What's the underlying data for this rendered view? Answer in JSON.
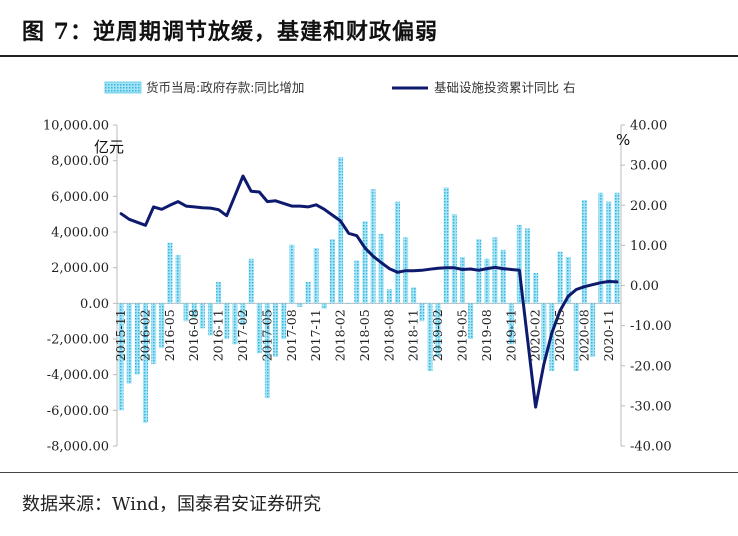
{
  "title": "图 7：逆周期调节放缓，基建和财政偏弱",
  "source": "数据来源：Wind，国泰君安证券研究",
  "colors": {
    "bar": "#5BC8E8",
    "line": "#0D1A6E"
  },
  "chart_data": {
    "type": "bar+line",
    "title": "",
    "ylabel_left": "亿元",
    "ylabel_right": "%",
    "ylim_left": [
      -8000,
      10000
    ],
    "ylim_right": [
      -40,
      40
    ],
    "yticks_left": [
      "10,000.00",
      "8,000.00",
      "6,000.00",
      "4,000.00",
      "2,000.00",
      "0.00",
      "-2,000.00",
      "-4,000.00",
      "-6,000.00",
      "-8,000.00"
    ],
    "yticks_right": [
      "40.00",
      "30.00",
      "20.00",
      "10.00",
      "0.00",
      "-10.00",
      "-20.00",
      "-30.00",
      "-40.00"
    ],
    "x_tick_labels": [
      "2015-11",
      "2016-02",
      "2016-05",
      "2016-08",
      "2016-11",
      "2017-02",
      "2017-05",
      "2017-08",
      "2017-11",
      "2018-02",
      "2018-05",
      "2018-08",
      "2018-11",
      "2019-02",
      "2019-05",
      "2019-08",
      "2019-11",
      "2020-02",
      "2020-05",
      "2020-08",
      "2020-11"
    ],
    "legend": [
      "货币当局:政府存款:同比增加",
      "基础设施投资累计同比 右"
    ],
    "legend_position": "top",
    "categories": [
      "2015-11",
      "2015-12",
      "2016-01",
      "2016-02",
      "2016-03",
      "2016-04",
      "2016-05",
      "2016-06",
      "2016-07",
      "2016-08",
      "2016-09",
      "2016-10",
      "2016-11",
      "2016-12",
      "2017-01",
      "2017-02",
      "2017-03",
      "2017-04",
      "2017-05",
      "2017-06",
      "2017-07",
      "2017-08",
      "2017-09",
      "2017-10",
      "2017-11",
      "2017-12",
      "2018-01",
      "2018-02",
      "2018-03",
      "2018-04",
      "2018-05",
      "2018-06",
      "2018-07",
      "2018-08",
      "2018-09",
      "2018-10",
      "2018-11",
      "2018-12",
      "2019-01",
      "2019-02",
      "2019-03",
      "2019-04",
      "2019-05",
      "2019-06",
      "2019-07",
      "2019-08",
      "2019-09",
      "2019-10",
      "2019-11",
      "2019-12",
      "2020-01",
      "2020-02",
      "2020-03",
      "2020-04",
      "2020-05",
      "2020-06",
      "2020-07",
      "2020-08",
      "2020-09",
      "2020-10",
      "2020-11",
      "2020-12"
    ],
    "series": [
      {
        "name": "货币当局:政府存款:同比增加",
        "type": "bar",
        "axis": "left",
        "values": [
          -6000,
          -4500,
          -4000,
          -6700,
          -3400,
          -2500,
          3400,
          2700,
          -1000,
          -800,
          -1400,
          -1800,
          1200,
          -2000,
          -2300,
          -1200,
          2500,
          -2800,
          -5300,
          -3000,
          -2000,
          3300,
          -200,
          1200,
          3100,
          -300,
          3600,
          8200,
          0,
          2400,
          4600,
          6400,
          3900,
          800,
          5700,
          3700,
          900,
          -1000,
          -3800,
          -3000,
          6500,
          5000,
          2600,
          -2000,
          3600,
          2500,
          3700,
          3000,
          -2300,
          4400,
          4200,
          1700,
          -3200,
          -3800,
          2900,
          2600,
          -3800,
          5800,
          -3000,
          6200,
          5700,
          6200
        ]
      },
      {
        "name": "基础设施投资累计同比 右",
        "type": "line",
        "axis": "right",
        "values": [
          17.9,
          16.5,
          null,
          15.0,
          19.6,
          19.0,
          20.0,
          20.9,
          19.8,
          19.6,
          19.4,
          19.3,
          18.9,
          17.4,
          null,
          27.3,
          23.5,
          23.3,
          20.9,
          21.1,
          null,
          19.8,
          19.8,
          19.6,
          20.1,
          19.0,
          null,
          16.1,
          13.0,
          12.4,
          9.4,
          7.3,
          5.7,
          4.2,
          3.3,
          3.7,
          3.7,
          3.8,
          null,
          4.3,
          4.4,
          4.4,
          4.0,
          4.1,
          3.8,
          4.2,
          4.5,
          4.2,
          4.0,
          3.8,
          null,
          -30.3,
          -19.7,
          -11.8,
          -6.3,
          -2.7,
          -1.0,
          -0.3,
          0.2,
          0.7,
          1.0,
          0.9
        ]
      }
    ]
  }
}
